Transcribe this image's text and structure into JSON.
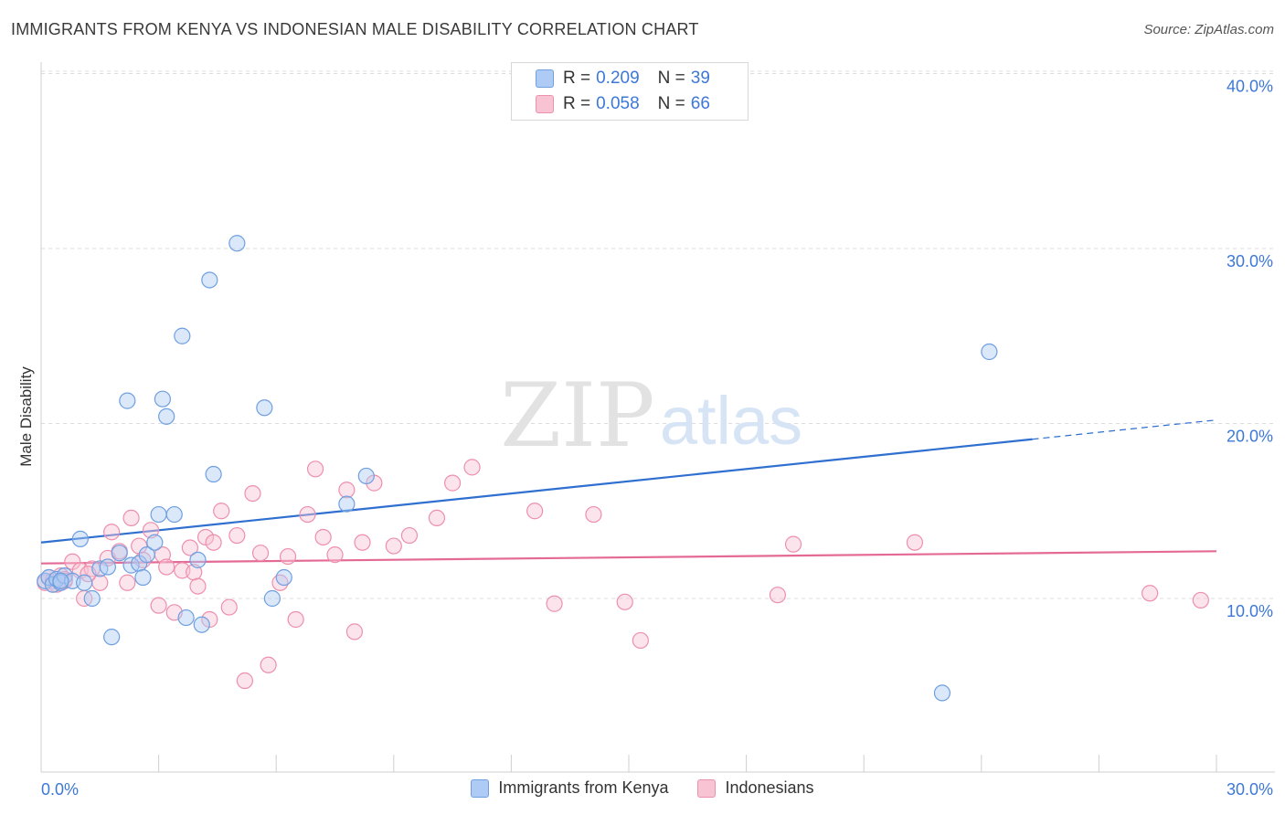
{
  "title": "IMMIGRANTS FROM KENYA VS INDONESIAN MALE DISABILITY CORRELATION CHART",
  "source": "Source: ZipAtlas.com",
  "watermark": {
    "zip": "ZIP",
    "atlas": "atlas"
  },
  "legend": {
    "rows": [
      {
        "r_label": "R =",
        "r_value": "0.209",
        "n_label": "N =",
        "n_value": "39",
        "fill": "#aecbf5",
        "stroke": "#6f9fe0"
      },
      {
        "r_label": "R =",
        "r_value": "0.058",
        "n_label": "N =",
        "n_value": "66",
        "fill": "#f8c4d4",
        "stroke": "#ee8fac"
      }
    ]
  },
  "bottom_legend": [
    {
      "label": "Immigrants from Kenya",
      "fill": "#aecbf5",
      "stroke": "#6f9fe0"
    },
    {
      "label": "Indonesians",
      "fill": "#f8c4d4",
      "stroke": "#ee8fac"
    }
  ],
  "chart_data": {
    "type": "scatter",
    "title": "IMMIGRANTS FROM KENYA VS INDONESIAN MALE DISABILITY CORRELATION CHART",
    "xlabel": "",
    "ylabel": "Male Disability",
    "xlim": [
      0,
      30
    ],
    "ylim": [
      0,
      42
    ],
    "x_tick_labels": [
      "0.0%",
      "30.0%"
    ],
    "y_ticks": [
      10,
      20,
      30,
      40
    ],
    "y_tick_labels": [
      "10.0%",
      "20.0%",
      "30.0%",
      "40.0%"
    ],
    "grid": "horizontal dashed",
    "legend_position": "top-center",
    "series": [
      {
        "name": "Immigrants from Kenya",
        "color": "#6f9fe0",
        "fill": "#aecbf5",
        "trend_color": "#2f6fd0",
        "trend": {
          "x0": 0,
          "y0": 13.2,
          "x1": 25.3,
          "y1": 19.1,
          "dash_to_x": 30,
          "dash_to_y": 20.2
        },
        "x": [
          0.1,
          0.2,
          0.3,
          0.4,
          0.5,
          0.6,
          0.8,
          1.0,
          1.1,
          1.3,
          1.5,
          1.7,
          1.8,
          2.0,
          2.2,
          2.3,
          2.5,
          2.6,
          2.7,
          2.9,
          3.0,
          3.1,
          3.2,
          3.4,
          3.6,
          3.7,
          4.0,
          4.1,
          4.3,
          4.4,
          5.0,
          5.7,
          5.9,
          6.2,
          7.8,
          8.3,
          23.0,
          24.2,
          0.5
        ],
        "y": [
          11.0,
          11.2,
          10.8,
          11.1,
          10.9,
          11.3,
          11.0,
          13.4,
          10.9,
          10.0,
          11.7,
          11.8,
          7.8,
          12.6,
          21.3,
          11.9,
          12.0,
          11.2,
          12.5,
          13.2,
          14.8,
          21.4,
          20.4,
          14.8,
          25.0,
          8.9,
          12.2,
          8.5,
          28.2,
          17.1,
          30.3,
          20.9,
          10.0,
          11.2,
          15.4,
          17.0,
          4.6,
          24.1,
          11.0
        ]
      },
      {
        "name": "Indonesians",
        "color": "#ee8fac",
        "fill": "#f8c4d4",
        "trend_color": "#e46a95",
        "trend": {
          "x0": 0,
          "y0": 12.0,
          "x1": 30,
          "y1": 12.7
        },
        "x": [
          0.1,
          0.2,
          0.3,
          0.4,
          0.5,
          0.6,
          0.8,
          1.0,
          1.1,
          1.3,
          1.5,
          1.7,
          1.8,
          2.0,
          2.2,
          2.3,
          2.5,
          2.6,
          2.8,
          3.0,
          3.1,
          3.2,
          3.4,
          3.6,
          3.8,
          3.9,
          4.0,
          4.2,
          4.3,
          4.4,
          4.6,
          4.8,
          5.0,
          5.2,
          5.4,
          5.6,
          5.8,
          6.1,
          6.3,
          6.5,
          6.8,
          7.0,
          7.2,
          7.5,
          7.8,
          8.0,
          8.2,
          8.5,
          9.0,
          9.4,
          10.1,
          10.5,
          11.0,
          12.6,
          13.1,
          14.1,
          14.9,
          15.3,
          18.8,
          19.2,
          22.3,
          28.3,
          29.6,
          0.3,
          0.6,
          1.2
        ],
        "y": [
          10.9,
          11.2,
          11.0,
          10.8,
          11.3,
          11.1,
          12.1,
          11.6,
          10.0,
          11.7,
          10.9,
          12.3,
          13.8,
          12.7,
          10.9,
          14.6,
          13.0,
          12.2,
          13.9,
          9.6,
          12.5,
          11.8,
          9.2,
          11.6,
          12.9,
          11.5,
          10.7,
          13.5,
          8.8,
          13.2,
          15.0,
          9.5,
          13.6,
          5.3,
          16.0,
          12.6,
          6.2,
          10.9,
          12.4,
          8.8,
          14.8,
          17.4,
          13.5,
          12.5,
          16.2,
          8.1,
          13.2,
          16.6,
          13.0,
          13.6,
          14.6,
          16.6,
          17.5,
          15.0,
          9.7,
          14.8,
          9.8,
          7.6,
          10.2,
          13.1,
          13.2,
          10.3,
          9.9,
          10.8,
          11.0,
          11.4
        ]
      }
    ]
  }
}
